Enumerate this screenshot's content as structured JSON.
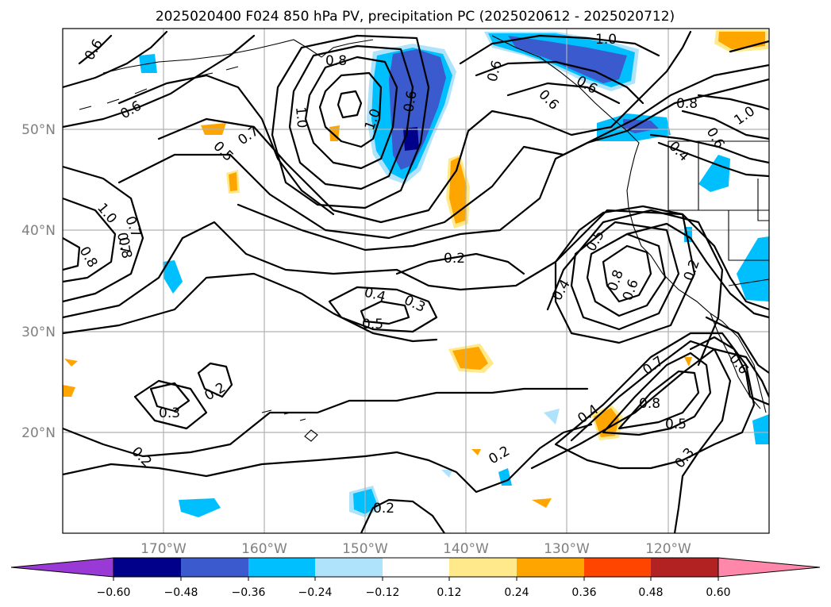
{
  "title": "2025020400 F024 850 hPa PV, precipitation PC (2025020612 - 2025020712)",
  "map": {
    "lon_range": [
      -180,
      -110
    ],
    "lat_range": [
      10,
      60
    ],
    "lon_ticks": [
      "170°W",
      "160°W",
      "150°W",
      "140°W",
      "130°W",
      "120°W"
    ],
    "lat_ticks": [
      "50°N",
      "40°N",
      "30°N",
      "20°N"
    ],
    "grid": true
  },
  "colorbar": {
    "ticks": [
      "−0.60",
      "−0.48",
      "−0.36",
      "−0.24",
      "−0.12",
      "0.12",
      "0.24",
      "0.36",
      "0.48",
      "0.60"
    ],
    "colors": [
      "#9a3ad6",
      "#00008b",
      "#3a5acd",
      "#00bfff",
      "#aee3fb",
      "#ffffff",
      "#ffe98a",
      "#ffa500",
      "#ff4500",
      "#b22222",
      "#ff88aa"
    ],
    "extend": "both"
  },
  "contour_labels": [
    "0.6",
    "0.6",
    "0.7",
    "0.8",
    "1.0",
    "1.0",
    "0.6",
    "0.6",
    "0.6",
    "0.6",
    "1.0",
    "0.8",
    "0.6",
    "0.4",
    "1.0",
    "0.7",
    "0.5",
    "1.0",
    "0.7",
    "0.8",
    "0.8",
    "0.2",
    "0.4",
    "0.3",
    "0.5",
    "0.5",
    "0.4",
    "0.8",
    "0.6",
    "0.2",
    "0.2",
    "0.3",
    "0.2",
    "0.2",
    "0.4",
    "0.7",
    "0.8",
    "0.5",
    "0.3",
    "0.6",
    "0.2"
  ],
  "legend_colors": {
    "neg_strong": "#00008b",
    "neg_mid": "#3a5acd",
    "neg_weak": "#00bfff",
    "neg_faint": "#aee3fb",
    "pos_faint": "#ffe98a",
    "pos_mid": "#ffa500"
  }
}
